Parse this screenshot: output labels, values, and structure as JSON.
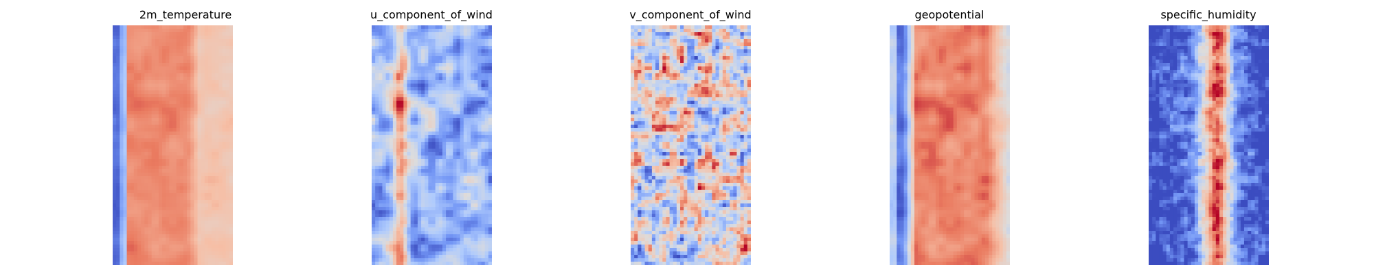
{
  "figure": {
    "panels": [
      {
        "title": "2m_temperature"
      },
      {
        "title": "u_component_of_wind"
      },
      {
        "title": "v_component_of_wind"
      },
      {
        "title": "geopotential"
      },
      {
        "title": "specific_humidity"
      }
    ]
  },
  "colormap": {
    "name": "coolwarm",
    "stops": [
      "#3b4cc0",
      "#7396f5",
      "#b0cbfc",
      "#dddcdc",
      "#f6bfa6",
      "#ea7b60",
      "#b40426"
    ]
  }
}
